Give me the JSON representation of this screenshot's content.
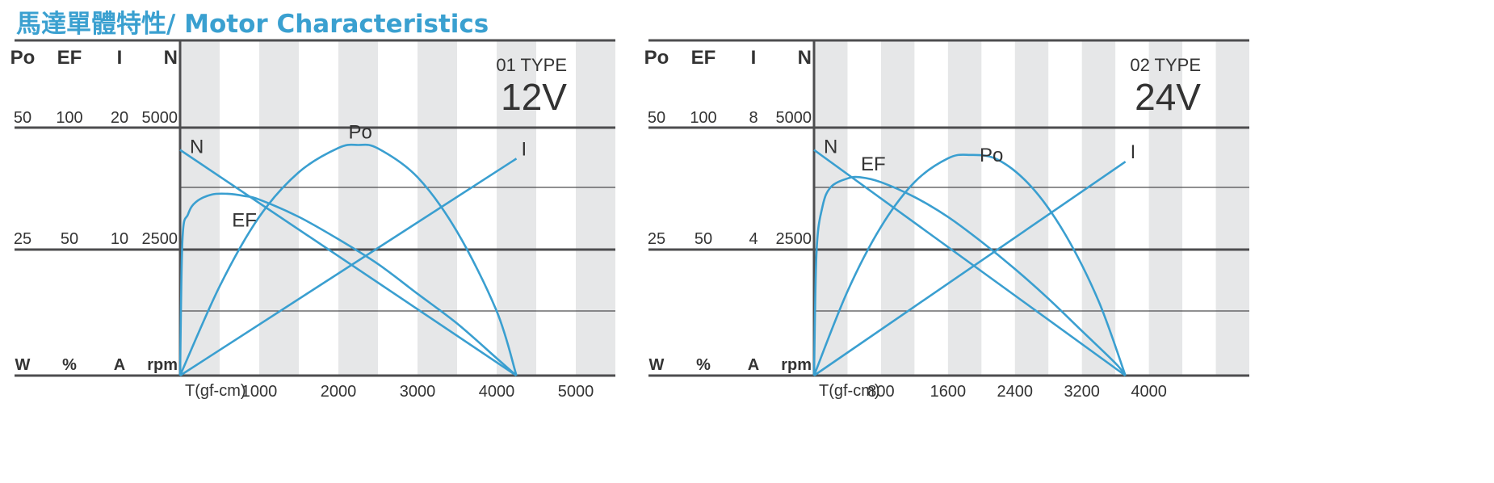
{
  "title": "馬達單體特性/ Motor Characteristics",
  "colors": {
    "title": "#3aa0d0",
    "curve": "#3a9fd0",
    "band": "#e6e7e8",
    "axis": "#4d4d4f",
    "text": "#333333"
  },
  "chart_data": [
    {
      "type": "line",
      "type_label": "01 TYPE",
      "voltage_label": "12V",
      "column_headers": [
        "Po",
        "EF",
        "I",
        "N"
      ],
      "unit_labels": [
        "W",
        "%",
        "A",
        "rpm"
      ],
      "scales": [
        {
          "name": "Po",
          "ticks": [
            "50",
            "25"
          ],
          "max": 50
        },
        {
          "name": "EF",
          "ticks": [
            "100",
            "50"
          ],
          "max": 100
        },
        {
          "name": "I",
          "ticks": [
            "20",
            "10"
          ],
          "max": 20
        },
        {
          "name": "N",
          "ticks": [
            "5000",
            "2500"
          ],
          "max": 5000
        }
      ],
      "xlabel": "T(gf-cm)",
      "x_ticks": [
        "1000",
        "2000",
        "3000",
        "4000",
        "5000"
      ],
      "x_tick_values": [
        1000,
        2000,
        3000,
        4000,
        5000
      ],
      "xlim": [
        0,
        5500
      ],
      "band_width": 500,
      "series": [
        {
          "name": "N",
          "label": "N",
          "x": [
            0,
            4250
          ],
          "y": [
            4550,
            0
          ]
        },
        {
          "name": "I",
          "label": "I",
          "x": [
            0,
            4250
          ],
          "y": [
            0,
            17.5
          ]
        },
        {
          "name": "Po",
          "label": "Po",
          "x": [
            0,
            500,
            1000,
            1500,
            2000,
            2250,
            2500,
            3000,
            3500,
            4000,
            4250
          ],
          "y": [
            0,
            18,
            32,
            41,
            45.9,
            46.5,
            45.8,
            40,
            29,
            13,
            0
          ]
        },
        {
          "name": "EF",
          "label": "EF",
          "x": [
            0,
            30,
            100,
            200,
            400,
            600,
            800,
            1000,
            1500,
            2000,
            2500,
            3000,
            3500,
            4000,
            4250
          ],
          "y": [
            0,
            55,
            65,
            70,
            73,
            73.3,
            72.5,
            71,
            64,
            55,
            45,
            33,
            21,
            7,
            0
          ]
        }
      ]
    },
    {
      "type": "line",
      "type_label": "02 TYPE",
      "voltage_label": "24V",
      "column_headers": [
        "Po",
        "EF",
        "I",
        "N"
      ],
      "unit_labels": [
        "W",
        "%",
        "A",
        "rpm"
      ],
      "scales": [
        {
          "name": "Po",
          "ticks": [
            "50",
            "25"
          ],
          "max": 50
        },
        {
          "name": "EF",
          "ticks": [
            "100",
            "50"
          ],
          "max": 100
        },
        {
          "name": "I",
          "ticks": [
            "8",
            "4"
          ],
          "max": 8
        },
        {
          "name": "N",
          "ticks": [
            "5000",
            "2500"
          ],
          "max": 5000
        }
      ],
      "xlabel": "T(gf-cm)",
      "x_ticks": [
        "800",
        "1600",
        "2400",
        "3200",
        "4000"
      ],
      "x_tick_values": [
        800,
        1600,
        2400,
        3200,
        4000
      ],
      "xlim": [
        0,
        5200
      ],
      "band_width": 400,
      "series": [
        {
          "name": "N",
          "label": "N",
          "x": [
            0,
            3720
          ],
          "y": [
            4550,
            0
          ]
        },
        {
          "name": "I",
          "label": "I",
          "x": [
            0,
            3720
          ],
          "y": [
            0,
            6.9
          ]
        },
        {
          "name": "Po",
          "label": "Po",
          "x": [
            0,
            400,
            800,
            1200,
            1600,
            1860,
            2200,
            2600,
            3000,
            3400,
            3720
          ],
          "y": [
            0,
            17,
            30,
            39,
            43.8,
            44.5,
            43.5,
            38,
            28.5,
            15,
            0
          ]
        },
        {
          "name": "EF",
          "label": "EF",
          "x": [
            0,
            30,
            100,
            200,
            400,
            550,
            800,
            1200,
            1600,
            2000,
            2400,
            2800,
            3200,
            3600,
            3720
          ],
          "y": [
            0,
            50,
            68,
            76,
            79.5,
            80,
            78,
            72,
            64,
            54,
            43,
            31,
            18,
            5,
            0
          ]
        }
      ]
    }
  ]
}
